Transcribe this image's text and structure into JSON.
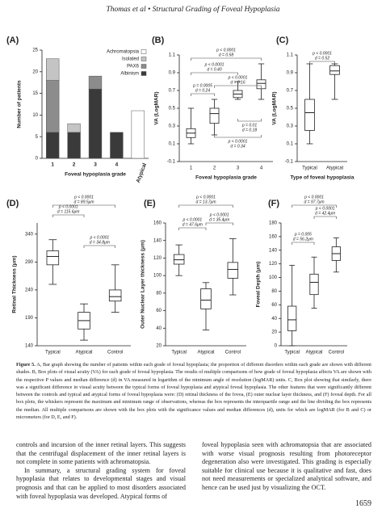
{
  "header": "Thomas et al • Structural Grading of Foveal Hypoplasia",
  "chart_data": [
    {
      "type": "stacked-bar",
      "label": "(A)",
      "ylabel": "Number of patients",
      "xlabel": "Foveal hypoplasia grade",
      "categories": [
        "1",
        "2",
        "3",
        "4",
        "Atypical"
      ],
      "ylim": [
        0,
        25
      ],
      "yticks": [
        0,
        5,
        10,
        15,
        20,
        25
      ],
      "series": [
        {
          "name": "Achromatopsia",
          "color": "#ffffff",
          "values": [
            0,
            0,
            0,
            0,
            11
          ]
        },
        {
          "name": "Isolated",
          "color": "#c4c4c4",
          "values": [
            5,
            2,
            0,
            0,
            0
          ]
        },
        {
          "name": "PAX6",
          "color": "#8c8c8c",
          "values": [
            12,
            0,
            3,
            0,
            0
          ]
        },
        {
          "name": "Albinism",
          "color": "#3a3a3a",
          "values": [
            6,
            6,
            16,
            6,
            0
          ]
        }
      ]
    },
    {
      "type": "box",
      "label": "(B)",
      "ylabel": "VA (LogMAR)",
      "xlabel": "Foveal hypoplasia grade",
      "categories": [
        "1",
        "2",
        "3",
        "4"
      ],
      "ylim": [
        -0.1,
        1.1
      ],
      "yticks": [
        -0.1,
        0.1,
        0.3,
        0.5,
        0.7,
        0.9,
        1.1
      ],
      "boxes": [
        {
          "min": 0.1,
          "q1": 0.17,
          "median": 0.22,
          "q3": 0.27,
          "max": 0.5
        },
        {
          "min": 0.2,
          "q1": 0.33,
          "median": 0.44,
          "q3": 0.5,
          "max": 0.6
        },
        {
          "min": 0.6,
          "q1": 0.62,
          "median": 0.66,
          "q3": 0.7,
          "max": 0.8
        },
        {
          "min": 0.6,
          "q1": 0.72,
          "median": 0.78,
          "q3": 0.82,
          "max": 1.0
        }
      ],
      "annotations": [
        {
          "p": "p < 0.0001",
          "d": "d = 0.58"
        },
        {
          "p": "p < 0.0001",
          "d": "d = 0.40"
        },
        {
          "p": "p = 0.0005",
          "d": "d = 0.24"
        },
        {
          "p": "p < 0.0001",
          "d": "d = 0.16"
        },
        {
          "p": "p = 0.01",
          "d": "d = 0.18"
        },
        {
          "p": "p < 0.0001",
          "d": "d = 0.34"
        }
      ]
    },
    {
      "type": "box",
      "label": "(C)",
      "ylabel": "VA (LogMAR)",
      "xlabel": "Type of foveal hypoplasia",
      "categories": [
        "Typical",
        "Atypical"
      ],
      "ylim": [
        -0.1,
        1.1
      ],
      "yticks": [
        -0.1,
        0.1,
        0.3,
        0.5,
        0.7,
        0.9,
        1.1
      ],
      "boxes": [
        {
          "min": 0.1,
          "q1": 0.25,
          "median": 0.45,
          "q3": 0.6,
          "max": 1.0
        },
        {
          "min": 0.6,
          "q1": 0.88,
          "median": 0.92,
          "q3": 0.98,
          "max": 1.0
        }
      ],
      "annotations": [
        {
          "p": "p < 0.0001",
          "d": "d = 0.52"
        }
      ]
    },
    {
      "type": "box",
      "label": "(D)",
      "ylabel": "Retinal Thickness (μm)",
      "xlabel": "Type of foveal hypoplasia",
      "categories": [
        "Typical",
        "Atypical",
        "Control"
      ],
      "ylim": [
        140,
        360
      ],
      "yticks": [
        140,
        190,
        240,
        290,
        340
      ],
      "boxes": [
        {
          "min": 250,
          "q1": 285,
          "median": 300,
          "q3": 310,
          "max": 330
        },
        {
          "min": 150,
          "q1": 170,
          "median": 185,
          "q3": 200,
          "max": 215
        },
        {
          "min": 200,
          "q1": 220,
          "median": 228,
          "q3": 240,
          "max": 285
        }
      ],
      "annotations": [
        {
          "p": "p < 0.0001",
          "d": "d = 89.5μm"
        },
        {
          "p": "p < 0.0001",
          "d": "d = 115.6μm"
        },
        {
          "p": "p < 0.0001",
          "d": "d = 34.8μm"
        }
      ]
    },
    {
      "type": "box",
      "label": "(E)",
      "ylabel": "Outer Nuclear Layer thickness (μm)",
      "xlabel": "Type of foveal hypoplasia",
      "categories": [
        "Typical",
        "Atypical",
        "Control"
      ],
      "ylim": [
        20,
        160
      ],
      "yticks": [
        20,
        40,
        60,
        80,
        100,
        120,
        140,
        160
      ],
      "boxes": [
        {
          "min": 100,
          "q1": 113,
          "median": 118,
          "q3": 124,
          "max": 135
        },
        {
          "min": 38,
          "q1": 62,
          "median": 72,
          "q3": 85,
          "max": 92
        },
        {
          "min": 78,
          "q1": 97,
          "median": 107,
          "q3": 115,
          "max": 142
        }
      ],
      "annotations": [
        {
          "p": "p < 0.0001",
          "d": "d = 13.7μm"
        },
        {
          "p": "p < 0.0001",
          "d": "d = 47.6μm"
        },
        {
          "p": "p < 0.0001",
          "d": "d = 35.4μm"
        }
      ]
    },
    {
      "type": "box",
      "label": "(F)",
      "ylabel": "Foveal Depth (μm)",
      "xlabel": "Type of foveal hypoplasia",
      "categories": [
        "Typical",
        "Atypical",
        "Control"
      ],
      "ylim": [
        0,
        180
      ],
      "yticks": [
        0,
        20,
        40,
        60,
        80,
        100,
        120,
        140,
        160,
        180
      ],
      "boxes": [
        {
          "min": 0,
          "q1": 22,
          "median": 38,
          "q3": 58,
          "max": 118
        },
        {
          "min": 55,
          "q1": 75,
          "median": 93,
          "q3": 105,
          "max": 130
        },
        {
          "min": 108,
          "q1": 125,
          "median": 135,
          "q3": 145,
          "max": 158
        }
      ],
      "annotations": [
        {
          "p": "p < 0.0001",
          "d": "d = 97.7μm"
        },
        {
          "p": "p < 0.0001",
          "d": "d = 42.4μm"
        },
        {
          "p": "p = 0.005",
          "d": "d = 56.2μm"
        }
      ]
    }
  ],
  "caption": {
    "label": "Figure 5.",
    "text": "A, Bar graph showing the number of patients within each grade of foveal hypoplasia; the proportion of different disorders within each grade are shown with different shades. B, Box plots of visual acuity (VA) for each grade of foveal hypoplasia. The results of multiple comparisons of how grade of foveal hypoplasia affects VA are shown with the respective P values and median difference (d) in VA measured in logarithm of the minimum angle of resolution (logMAR) units. C, Box plot showing that similarly, there was a significant difference in visual acuity between the typical forms of foveal hypoplasia and atypical foveal hypoplasia. The other features that were significantly different between the controls and typical and atypical forms of foveal hypoplasia were: (D) retinal thickness of the fovea, (E) outer nuclear layer thickness, and (F) foveal depth. For all box plots, the whiskers represent the maximum and minimum range of observations, whereas the box represents the interquartile range and the line dividing the box represents the median. All multiple comparisons are shown with the box plots with the significance values and median differences (d), units for which are logMAR (for B and C) or micrometers (for D, E, and F)."
  },
  "body": {
    "left": [
      "controls and incursion of the inner retinal layers. This suggests that the centrifugal displacement of the inner retinal layers is not complete in some patients with achromatopsia.",
      "In summary, a structural grading system for foveal hypoplasia that relates to developmental stages and visual prognosis and that can be applied to most disorders associated with foveal hypoplasia was developed. Atypical forms of"
    ],
    "right": [
      "foveal hypoplasia seen with achromatopsia that are associated with worse visual prognosis resulting from photoreceptor degeneration also were investigated. This grading is especially suitable for clinical use because it is qualitative and fast, does not need measurements or specialized analytical software, and hence can be used just by visualizing the OCT."
    ]
  },
  "page_number": "1659"
}
